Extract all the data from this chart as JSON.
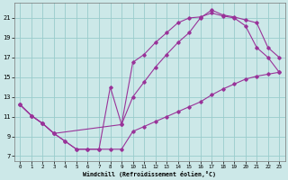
{
  "xlabel": "Windchill (Refroidissement éolien,°C)",
  "bg_color": "#cce8e8",
  "grid_color": "#99cccc",
  "line_color": "#993399",
  "xlim": [
    -0.5,
    23.5
  ],
  "ylim": [
    6.5,
    22.5
  ],
  "xticks": [
    0,
    1,
    2,
    3,
    4,
    5,
    6,
    7,
    8,
    9,
    10,
    11,
    12,
    13,
    14,
    15,
    16,
    17,
    18,
    19,
    20,
    21,
    22,
    23
  ],
  "yticks": [
    7,
    9,
    11,
    13,
    15,
    17,
    19,
    21
  ],
  "line1_x": [
    0,
    1,
    2,
    3,
    4,
    5,
    6,
    7,
    8,
    9,
    10,
    11,
    12,
    13,
    14,
    15,
    16,
    17,
    18,
    19,
    20,
    21,
    22,
    23
  ],
  "line1_y": [
    12.2,
    11.1,
    10.3,
    9.3,
    8.5,
    7.7,
    7.7,
    7.7,
    7.7,
    7.7,
    9.5,
    10.0,
    10.5,
    11.0,
    11.5,
    12.0,
    12.5,
    13.2,
    13.8,
    14.3,
    14.8,
    15.1,
    15.3,
    15.5
  ],
  "line2_x": [
    0,
    1,
    2,
    3,
    4,
    5,
    6,
    7,
    8,
    9,
    10,
    11,
    12,
    13,
    14,
    15,
    16,
    17,
    18,
    19,
    20,
    21,
    22,
    23
  ],
  "line2_y": [
    12.2,
    11.1,
    10.3,
    9.3,
    8.5,
    7.7,
    7.7,
    7.7,
    14.0,
    10.2,
    16.5,
    17.3,
    18.5,
    19.5,
    20.5,
    21.0,
    21.1,
    21.5,
    21.2,
    21.0,
    20.2,
    18.0,
    17.0,
    15.5
  ],
  "line3_x": [
    0,
    1,
    2,
    3,
    9,
    10,
    11,
    12,
    13,
    14,
    15,
    16,
    17,
    18,
    19,
    20,
    21,
    22,
    23
  ],
  "line3_y": [
    12.2,
    11.1,
    10.3,
    9.3,
    10.2,
    13.0,
    14.5,
    16.0,
    17.3,
    18.5,
    19.5,
    21.0,
    21.8,
    21.3,
    21.1,
    20.8,
    20.5,
    18.0,
    17.0
  ]
}
